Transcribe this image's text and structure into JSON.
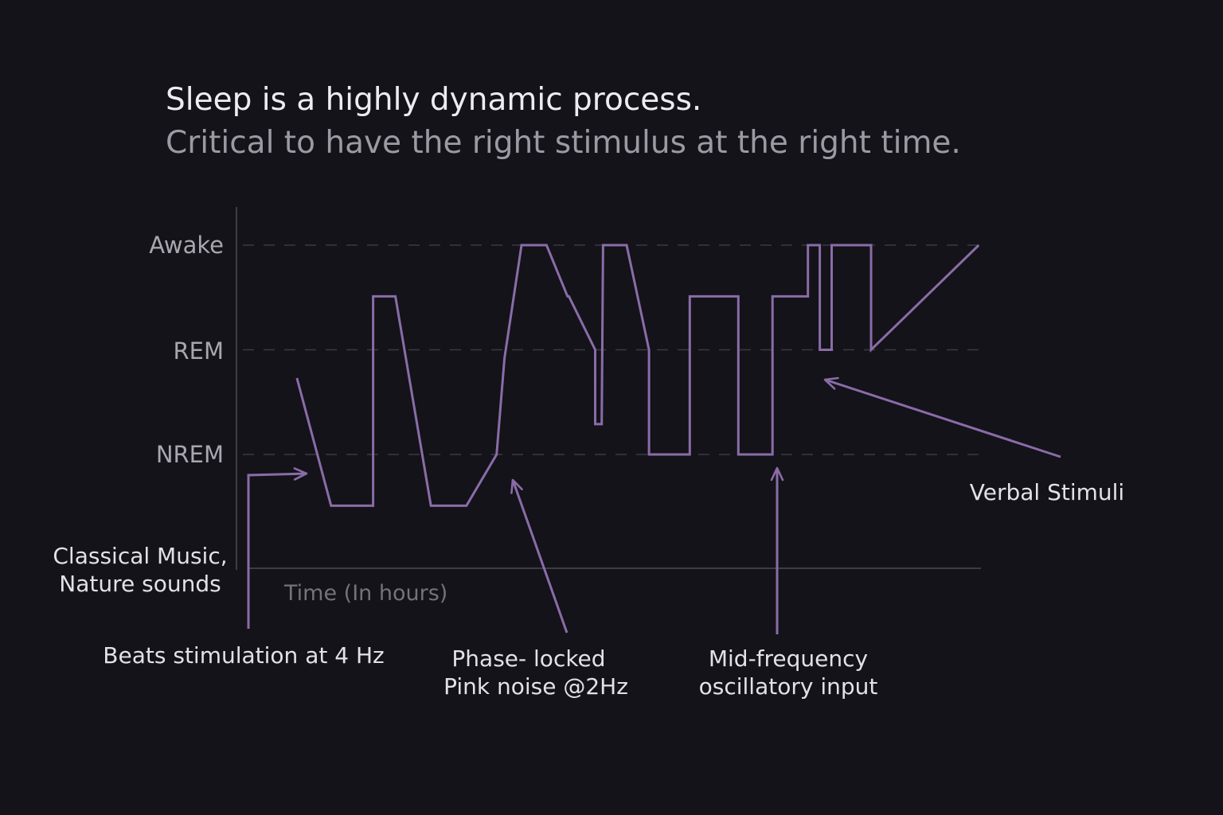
{
  "header": {
    "title": "Sleep is a highly dynamic process.",
    "subtitle": "Critical to have the right stimulus at the right time."
  },
  "chart_data": {
    "type": "line",
    "xlabel": "Time (In hours)",
    "y_levels": [
      "NREM",
      "REM",
      "Awake"
    ],
    "y_level_values": {
      "Deep": 0,
      "NREM": 1,
      "REM": 2,
      "Awake": 3
    },
    "grid": "dashed horizontal lines at NREM, REM, Awake",
    "series": [
      {
        "x": [
          0.46,
          0.72,
          1.04,
          1.04,
          1.21,
          1.48,
          1.75,
          1.98,
          2.04,
          2.17,
          2.36,
          2.52,
          2.53,
          2.73,
          2.73,
          2.78,
          2.79,
          2.97,
          3.14,
          3.14,
          3.45,
          3.45,
          3.82,
          3.82,
          4.08,
          4.08,
          4.35,
          4.35,
          4.44,
          4.44,
          4.53,
          4.53,
          4.83,
          4.83,
          5.65
        ],
        "y": [
          1.73,
          0.51,
          0.51,
          2.51,
          2.51,
          0.51,
          0.51,
          1.0,
          1.92,
          3.0,
          3.0,
          2.51,
          2.51,
          2.0,
          1.29,
          1.29,
          3.0,
          3.0,
          2.0,
          1.0,
          1.0,
          2.51,
          2.51,
          1.0,
          1.0,
          2.51,
          2.51,
          3.0,
          3.0,
          2.0,
          2.0,
          3.0,
          3.0,
          2.0,
          3.0
        ]
      }
    ],
    "colors": {
      "line": "#8a6ca8",
      "axis": "#3d3d47",
      "grid": "#3a3a44",
      "arrow": "#8a6ca8"
    },
    "annotations": [
      {
        "id": "classical",
        "lines": [
          "Classical Music,",
          "Nature sounds"
        ]
      },
      {
        "id": "beats",
        "lines": [
          "Beats stimulation at 4 Hz"
        ]
      },
      {
        "id": "pink",
        "lines": [
          "Phase- locked",
          "Pink noise @2Hz"
        ]
      },
      {
        "id": "midfreq",
        "lines": [
          "Mid-frequency",
          "oscillatory input"
        ]
      },
      {
        "id": "verbal",
        "lines": [
          "Verbal Stimuli"
        ]
      }
    ]
  }
}
